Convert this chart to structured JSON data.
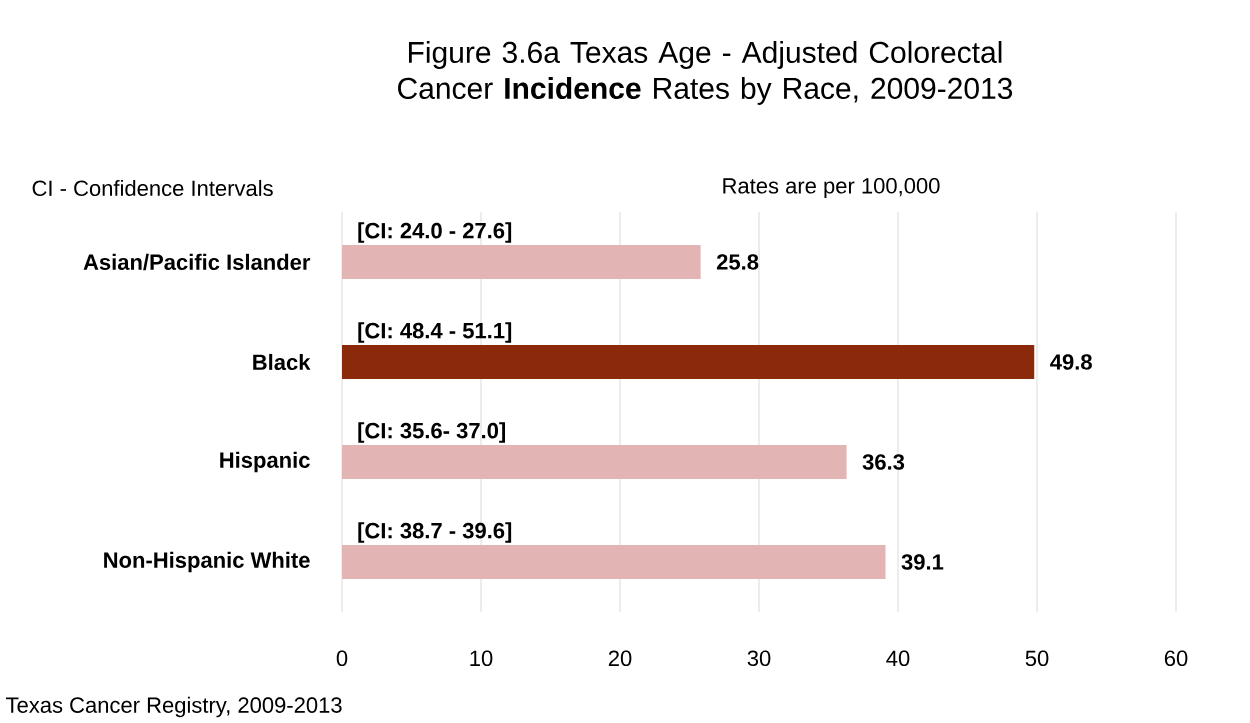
{
  "chart_data": {
    "type": "bar",
    "orientation": "horizontal",
    "title": "Figure 3.6a Texas Age - Adjusted Colorectal Cancer **Incidence** Rates by Race, 2009-2013",
    "categories": [
      "Asian/Pacific Islander",
      "Black",
      "Hispanic",
      "Non-Hispanic White"
    ],
    "values": [
      25.8,
      49.8,
      36.3,
      39.1
    ],
    "colors": [
      "#e2b4b4",
      "#8b2a0a",
      "#e2b4b4",
      "#e2b4b4"
    ],
    "data_labels": true,
    "xlim": [
      0,
      60
    ],
    "xticks": [
      0,
      10,
      20,
      30,
      40,
      50,
      60
    ],
    "grid": "x",
    "annotations": [
      "CI - Confidence Intervals",
      "Rates are per 100,000",
      "Texas Cancer Registry, 2009-2013",
      "[CI: 24.0 - 27.6]",
      "[CI: 48.4 - 51.1]",
      "[CI: 35.6- 37.0]",
      "[CI: 38.7 - 39.6]"
    ]
  }
}
